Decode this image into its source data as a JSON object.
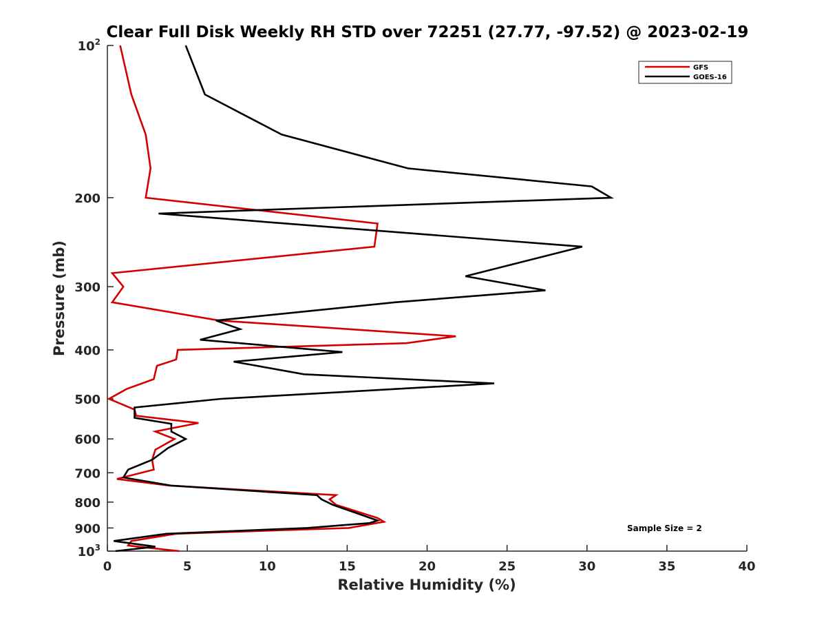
{
  "chart_data": {
    "type": "line",
    "title": "Clear Full Disk Weekly RH STD over 72251 (27.77, -97.52) @ 2023-02-19",
    "xlabel": "Relative Humidity (%)",
    "ylabel": "Pressure (mb)",
    "xlim": [
      0,
      40
    ],
    "ylim": [
      100,
      1000
    ],
    "y_scale": "log",
    "y_reversed": true,
    "x_ticks": [
      "0",
      "5",
      "10",
      "15",
      "20",
      "25",
      "30",
      "35",
      "40"
    ],
    "y_ticks": [
      {
        "value": 100,
        "label": "10",
        "sup": "2"
      },
      {
        "value": 200,
        "label": "200",
        "sup": ""
      },
      {
        "value": 300,
        "label": "300",
        "sup": ""
      },
      {
        "value": 400,
        "label": "400",
        "sup": ""
      },
      {
        "value": 500,
        "label": "500",
        "sup": ""
      },
      {
        "value": 600,
        "label": "600",
        "sup": ""
      },
      {
        "value": 700,
        "label": "700",
        "sup": ""
      },
      {
        "value": 800,
        "label": "800",
        "sup": ""
      },
      {
        "value": 900,
        "label": "900",
        "sup": ""
      },
      {
        "value": 1000,
        "label": "10",
        "sup": "3"
      }
    ],
    "legend_position": "top-right",
    "annotation": "Sample Size = 2",
    "series": [
      {
        "name": "GFS",
        "color": "#d40000",
        "points": [
          [
            0.8,
            100
          ],
          [
            1.5,
            125
          ],
          [
            2.4,
            150
          ],
          [
            2.7,
            175
          ],
          [
            2.4,
            200
          ],
          [
            16.9,
            225
          ],
          [
            16.7,
            250
          ],
          [
            0.3,
            282
          ],
          [
            1.0,
            300
          ],
          [
            0.3,
            322
          ],
          [
            7.0,
            350
          ],
          [
            21.8,
            376
          ],
          [
            18.7,
            388
          ],
          [
            4.4,
            400
          ],
          [
            4.3,
            418
          ],
          [
            3.1,
            430
          ],
          [
            2.9,
            457
          ],
          [
            1.2,
            478
          ],
          [
            0.1,
            500
          ],
          [
            1.7,
            525
          ],
          [
            1.8,
            540
          ],
          [
            5.7,
            558
          ],
          [
            3.0,
            580
          ],
          [
            4.2,
            600
          ],
          [
            3.0,
            630
          ],
          [
            2.8,
            660
          ],
          [
            2.9,
            690
          ],
          [
            0.6,
            720
          ],
          [
            3.9,
            742
          ],
          [
            14.3,
            775
          ],
          [
            13.9,
            790
          ],
          [
            14.3,
            810
          ],
          [
            16.9,
            860
          ],
          [
            17.3,
            875
          ],
          [
            15.1,
            900
          ],
          [
            4.3,
            924
          ],
          [
            1.5,
            955
          ],
          [
            1.3,
            975
          ],
          [
            4.5,
            1000
          ]
        ]
      },
      {
        "name": "GOES-16",
        "color": "#000000",
        "points": [
          [
            4.9,
            100
          ],
          [
            6.1,
            125
          ],
          [
            10.9,
            150
          ],
          [
            18.8,
            175
          ],
          [
            30.3,
            190
          ],
          [
            31.5,
            200
          ],
          [
            3.2,
            215
          ],
          [
            29.7,
            250
          ],
          [
            22.4,
            286
          ],
          [
            27.4,
            305
          ],
          [
            18.0,
            322
          ],
          [
            6.8,
            350
          ],
          [
            8.3,
            364
          ],
          [
            5.8,
            382
          ],
          [
            14.7,
            404
          ],
          [
            7.9,
            422
          ],
          [
            12.3,
            447
          ],
          [
            24.2,
            466
          ],
          [
            7.1,
            500
          ],
          [
            1.7,
            520
          ],
          [
            1.7,
            545
          ],
          [
            4.0,
            560
          ],
          [
            4.0,
            580
          ],
          [
            4.9,
            600
          ],
          [
            3.8,
            625
          ],
          [
            2.8,
            660
          ],
          [
            1.3,
            690
          ],
          [
            1.0,
            715
          ],
          [
            4.0,
            742
          ],
          [
            13.1,
            775
          ],
          [
            13.4,
            790
          ],
          [
            14.1,
            810
          ],
          [
            16.9,
            870
          ],
          [
            16.4,
            880
          ],
          [
            12.5,
            900
          ],
          [
            3.7,
            924
          ],
          [
            0.4,
            955
          ],
          [
            3.0,
            980
          ],
          [
            0.5,
            1000
          ]
        ]
      }
    ]
  }
}
